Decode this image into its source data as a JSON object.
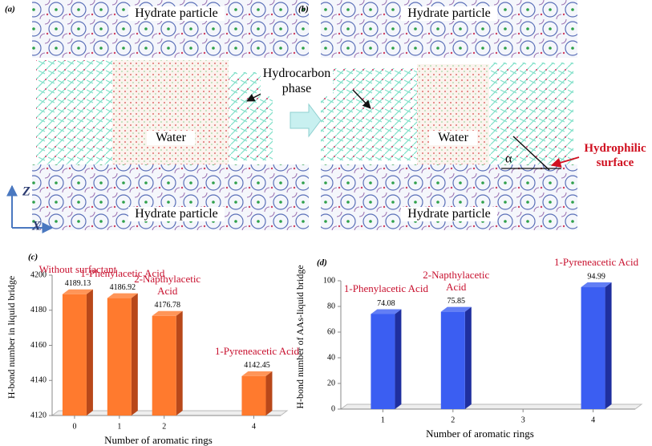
{
  "figure": {
    "panel_a": {
      "label": "(a)",
      "top": "Hydrate particle",
      "bottom": "Hydrate particle",
      "water": "Water"
    },
    "panel_b": {
      "label": "(b)",
      "top": "Hydrate particle",
      "bottom": "Hydrate particle",
      "water": "Water"
    },
    "hydrocarbon": "Hydrocarbon phase",
    "alpha": "α",
    "surface": "Hydrophilic surface",
    "axis_z": "Z",
    "axis_x": "X"
  },
  "chart_data": [
    {
      "type": "bar3d",
      "panel_label": "(c)",
      "y_label": "H-bond number in liquid bridge",
      "x_label": "Number of aromatic rings",
      "x": [
        0,
        1,
        2,
        4
      ],
      "values": [
        4189.13,
        4186.92,
        4176.78,
        4142.45
      ],
      "annotations": [
        "Without surfactant",
        "1-Phenylacetic Acid",
        "2-Napthylacetic Acid",
        "1-Pyreneacetic Acid"
      ],
      "color": "#ff7a2e",
      "side_color": "#b8481a",
      "xlim": [
        -0.5,
        4.6
      ],
      "xticks": [
        0,
        1,
        2,
        4
      ],
      "ylim": [
        4120,
        4200
      ],
      "yticks": [
        4120,
        4140,
        4160,
        4180,
        4200
      ]
    },
    {
      "type": "bar3d",
      "panel_label": "(d)",
      "y_label": "H-bond number of AAs-liquid bridge",
      "x_label": "Number of aromatic rings",
      "x": [
        1,
        2,
        4
      ],
      "values": [
        74.08,
        75.85,
        94.99
      ],
      "annotations": [
        "1-Phenylacetic Acid",
        "2-Napthylacetic Acid",
        "1-Pyreneacetic Acid"
      ],
      "color": "#3b5ef2",
      "side_color": "#1f2f9e",
      "xlim": [
        0.4,
        4.6
      ],
      "xticks": [
        1,
        2,
        3,
        4
      ],
      "ylim": [
        0,
        100
      ],
      "yticks": [
        0,
        20,
        40,
        60,
        80,
        100
      ]
    }
  ]
}
